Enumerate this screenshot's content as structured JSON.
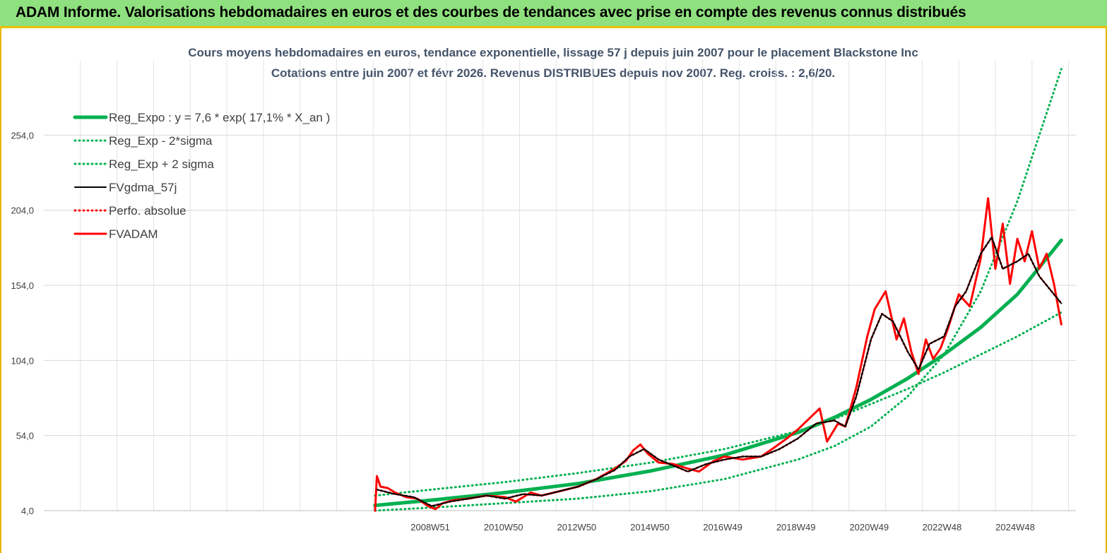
{
  "banner": {
    "title": "ADAM Informe. Valorisations hebdomadaires en euros et des courbes de tendances avec prise en compte des revenus connus distribués"
  },
  "chart_data": {
    "type": "line",
    "title": "Cours moyens hebdomadaires en euros, tendance exponentielle, lissage 57 j depuis juin 2007 pour le placement Blackstone Inc",
    "subtitle": "Cotations entre juin 2007 et févr 2026. Revenus DISTRIBUES depuis nov 2007. Reg. croiss. : 2,6/20.",
    "xlabel": "",
    "ylabel": "",
    "x_tick_labels": [
      "2008W51",
      "2010W50",
      "2012W50",
      "2014W50",
      "2016W49",
      "2018W49",
      "2020W49",
      "2022W48",
      "2024W48"
    ],
    "x_tick_years": [
      2008.96,
      2010.96,
      2012.96,
      2014.96,
      2016.95,
      2018.95,
      2020.95,
      2022.94,
      2024.94
    ],
    "xlim": [
      1998.4,
      2026.6
    ],
    "y_tick_labels": [
      "4,0",
      "54,0",
      "104,0",
      "154,0",
      "204,0",
      "254,0"
    ],
    "y_ticks": [
      4,
      54,
      104,
      154,
      204,
      254
    ],
    "ylim": [
      4,
      304
    ],
    "grid": true,
    "legend_position": "top-left",
    "series": [
      {
        "name": "Reg_Expo : y = 7,6 * exp( 17,1% *  X_an )",
        "color": "#00b050",
        "style": "solid-thick",
        "x": [
          2007.45,
          2009,
          2011,
          2013,
          2015,
          2017,
          2019,
          2020,
          2021,
          2022,
          2023,
          2024,
          2025,
          2026.2
        ],
        "y": [
          7.5,
          11,
          16,
          22,
          30.5,
          41,
          56,
          66,
          78,
          92,
          108,
          126,
          148,
          184
        ]
      },
      {
        "name": "Reg_Exp - 2*sigma",
        "color": "#00b050",
        "style": "dotted",
        "x": [
          2007.45,
          2009,
          2011,
          2013,
          2015,
          2017,
          2019,
          2020,
          2021,
          2022,
          2023,
          2024,
          2025,
          2026.2
        ],
        "y": [
          14,
          18,
          23,
          29,
          36,
          45,
          57,
          65,
          75,
          85,
          96,
          108,
          120,
          136
        ]
      },
      {
        "name": "Reg_Exp + 2 sigma",
        "color": "#00b050",
        "style": "dotted",
        "x": [
          2007.45,
          2009,
          2011,
          2013,
          2015,
          2017,
          2019,
          2020,
          2021,
          2022,
          2023,
          2024,
          2025,
          2026.2
        ],
        "y": [
          4,
          6,
          9,
          12,
          17,
          25,
          38,
          47,
          60,
          80,
          108,
          150,
          210,
          298
        ]
      },
      {
        "name": "FVgdma_57j",
        "color": "#000000",
        "style": "solid",
        "x": [
          2007.5,
          2008,
          2008.5,
          2009,
          2009.5,
          2010,
          2010.5,
          2011,
          2011.5,
          2012,
          2012.5,
          2013,
          2013.5,
          2014,
          2014.4,
          2014.8,
          2015.2,
          2015.6,
          2016,
          2016.5,
          2017,
          2017.5,
          2018,
          2018.5,
          2019,
          2019.5,
          2020,
          2020.3,
          2020.6,
          2021,
          2021.3,
          2021.6,
          2022,
          2022.3,
          2022.6,
          2023,
          2023.3,
          2023.6,
          2024,
          2024.3,
          2024.6,
          2025,
          2025.3,
          2025.6,
          2026.2
        ],
        "y": [
          18,
          15,
          13,
          7,
          10,
          12,
          14,
          12,
          15,
          14,
          17,
          20,
          25,
          31,
          40,
          45,
          38,
          34,
          30,
          35,
          38,
          40,
          40,
          45,
          52,
          62,
          64,
          60,
          80,
          118,
          135,
          130,
          110,
          98,
          115,
          120,
          140,
          150,
          175,
          186,
          165,
          170,
          175,
          160,
          142
        ]
      },
      {
        "name": "Perfo. absolue",
        "color": "#ff0000",
        "style": "dotted",
        "x": [
          2007.5,
          2008,
          2008.5,
          2009,
          2009.5,
          2010,
          2010.5,
          2011,
          2011.5,
          2012,
          2012.5,
          2013,
          2013.5,
          2014,
          2014.4,
          2014.8,
          2015.2,
          2015.6,
          2016,
          2016.5,
          2017,
          2017.5,
          2018,
          2018.5,
          2019,
          2019.5,
          2020,
          2020.3,
          2020.6,
          2021,
          2021.3,
          2021.6,
          2022,
          2022.3,
          2022.6,
          2023,
          2023.3,
          2023.6,
          2024,
          2024.3,
          2024.6,
          2025,
          2025.3,
          2025.6,
          2026.2
        ],
        "y": [
          18,
          15,
          13,
          7,
          10,
          12,
          14,
          12,
          15,
          14,
          17,
          20,
          25,
          31,
          40,
          45,
          38,
          34,
          30,
          35,
          38,
          40,
          40,
          45,
          52,
          62,
          64,
          60,
          80,
          118,
          135,
          130,
          110,
          98,
          115,
          120,
          140,
          150,
          175,
          186,
          165,
          170,
          175,
          160,
          142
        ]
      },
      {
        "name": "FVADAM",
        "color": "#ff0000",
        "style": "solid-medium",
        "x": [
          2007.45,
          2007.5,
          2007.6,
          2007.8,
          2008,
          2008.3,
          2008.6,
          2008.9,
          2009.1,
          2009.3,
          2009.6,
          2010,
          2010.5,
          2011,
          2011.3,
          2011.7,
          2012,
          2012.5,
          2013,
          2013.5,
          2014,
          2014.3,
          2014.5,
          2014.7,
          2014.9,
          2015.2,
          2015.6,
          2016,
          2016.3,
          2016.7,
          2017,
          2017.5,
          2018,
          2018.3,
          2018.7,
          2019,
          2019.3,
          2019.6,
          2019.8,
          2020.1,
          2020.3,
          2020.6,
          2020.9,
          2021.1,
          2021.4,
          2021.7,
          2021.9,
          2022.1,
          2022.3,
          2022.5,
          2022.7,
          2022.9,
          2023.1,
          2023.4,
          2023.7,
          2024,
          2024.2,
          2024.4,
          2024.6,
          2024.8,
          2025,
          2025.2,
          2025.4,
          2025.6,
          2025.8,
          2026,
          2026.2
        ],
        "y": [
          4,
          27,
          20,
          19,
          16,
          13,
          12,
          7,
          5,
          9,
          11,
          12,
          14,
          13,
          10,
          16,
          14,
          17,
          20,
          25,
          32,
          37,
          44,
          48,
          42,
          36,
          35,
          32,
          30,
          37,
          40,
          38,
          40,
          45,
          52,
          58,
          65,
          72,
          50,
          62,
          60,
          86,
          120,
          138,
          150,
          118,
          132,
          110,
          95,
          118,
          105,
          112,
          125,
          148,
          140,
          172,
          212,
          165,
          195,
          155,
          185,
          170,
          190,
          165,
          175,
          155,
          128
        ]
      }
    ]
  }
}
